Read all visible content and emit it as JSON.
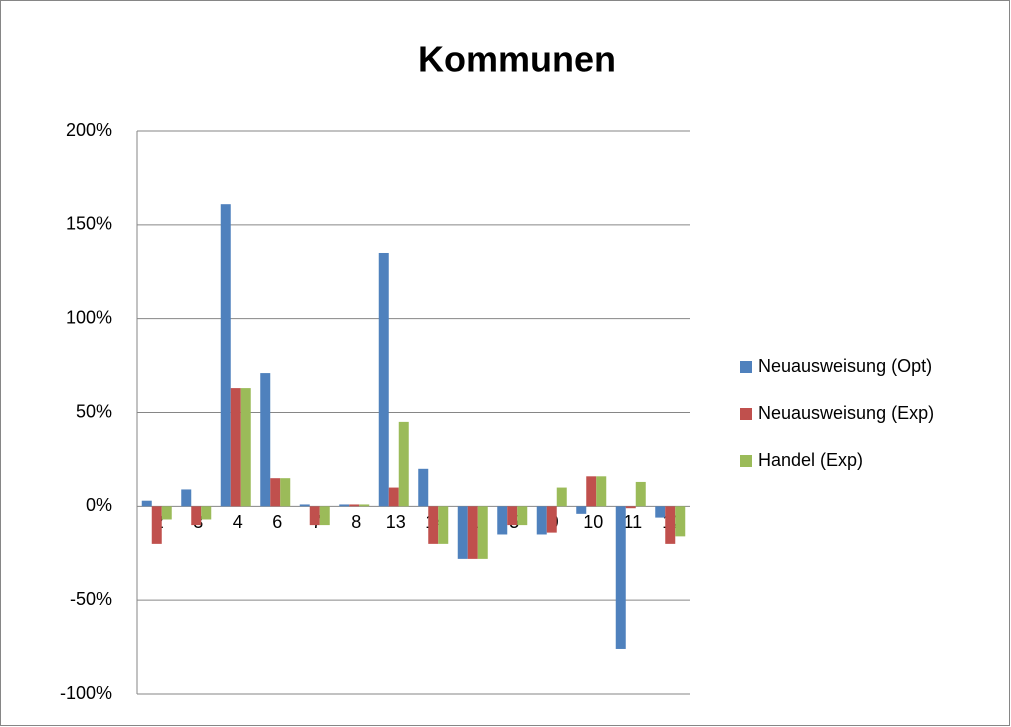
{
  "chart_data": {
    "type": "bar",
    "title": "Kommunen",
    "categories": [
      "2",
      "3",
      "4",
      "6",
      "7",
      "8",
      "13",
      "14",
      "1",
      "5",
      "9",
      "10",
      "11",
      "12"
    ],
    "series": [
      {
        "name": "Neuausweisung (Opt)",
        "color": "#4f81bd",
        "values": [
          3,
          9,
          161,
          71,
          1,
          1,
          135,
          20,
          -28,
          -15,
          -15,
          -4,
          -76,
          -6
        ]
      },
      {
        "name": "Neuausweisung (Exp)",
        "color": "#c0504d",
        "values": [
          -20,
          -10,
          63,
          15,
          -10,
          1,
          10,
          -20,
          -28,
          -10,
          -14,
          16,
          -1,
          -20
        ]
      },
      {
        "name": "Handel (Exp)",
        "color": "#9bbb59",
        "values": [
          -7,
          -7,
          63,
          15,
          -10,
          1,
          45,
          -20,
          -28,
          -10,
          10,
          16,
          13,
          -16
        ]
      }
    ],
    "ylim": [
      -100,
      200
    ],
    "yticks": [
      {
        "value": -100,
        "label": "-100%"
      },
      {
        "value": -50,
        "label": "-50%"
      },
      {
        "value": 0,
        "label": "0%"
      },
      {
        "value": 50,
        "label": "50%"
      },
      {
        "value": 100,
        "label": "100%"
      },
      {
        "value": 150,
        "label": "150%"
      },
      {
        "value": 200,
        "label": "200%"
      }
    ],
    "grid": true,
    "legend": "right"
  }
}
